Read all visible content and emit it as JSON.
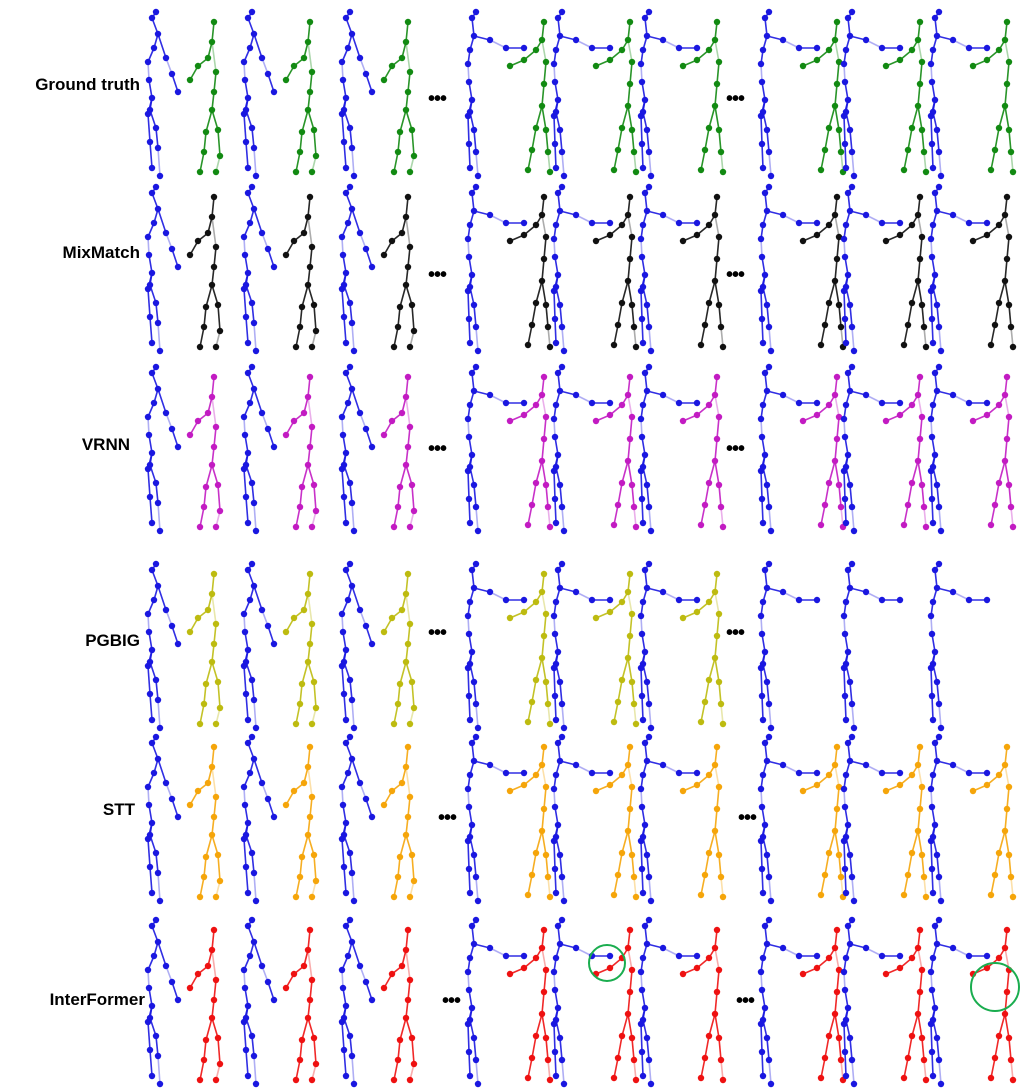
{
  "rows": [
    {
      "label": "Ground truth",
      "partner_color": "#128a12",
      "partner_visible": [
        true,
        true,
        true,
        true,
        true,
        true,
        true,
        true,
        true
      ]
    },
    {
      "label": "MixMatch",
      "partner_color": "#111111",
      "partner_visible": [
        true,
        true,
        true,
        true,
        true,
        true,
        true,
        true,
        true
      ]
    },
    {
      "label": "VRNN",
      "partner_color": "#c21bc2",
      "partner_visible": [
        true,
        true,
        true,
        true,
        true,
        true,
        true,
        true,
        true
      ]
    },
    {
      "label": "PGBIG",
      "partner_color": "#bdbb10",
      "partner_visible": [
        true,
        true,
        true,
        true,
        true,
        true,
        false,
        false,
        false
      ]
    },
    {
      "label": "STT",
      "partner_color": "#f5a50a",
      "partner_visible": [
        true,
        true,
        true,
        true,
        true,
        true,
        true,
        true,
        true
      ]
    },
    {
      "label": "InterFormer",
      "partner_color": "#ee1111",
      "partner_visible": [
        true,
        true,
        true,
        true,
        true,
        true,
        true,
        true,
        true
      ]
    }
  ],
  "ellipsis": "•••",
  "main_person_color": "#1a17e0",
  "highlight_color": "#1aad4f"
}
